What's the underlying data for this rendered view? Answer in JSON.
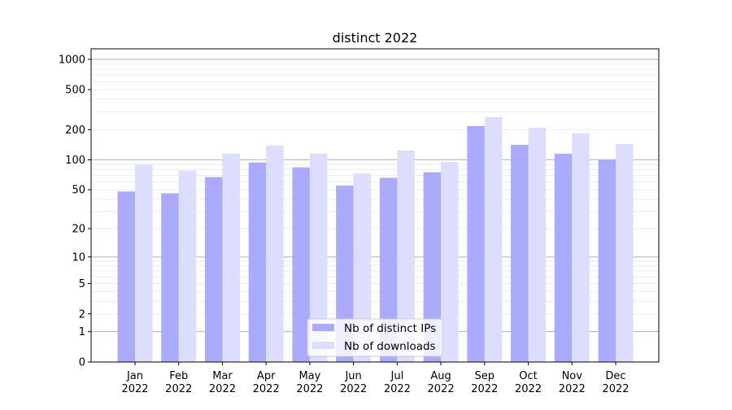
{
  "chart_data": {
    "type": "bar",
    "title": "distinct 2022",
    "xlabel": "",
    "ylabel": "",
    "y_scale": "log10(y+1)",
    "ylim": [
      0,
      1270
    ],
    "yticks": [
      0,
      1,
      2,
      5,
      10,
      20,
      50,
      100,
      200,
      500,
      1000
    ],
    "grid": true,
    "legend_position": "bottom-center",
    "categories": [
      "Jan\n2022",
      "Feb\n2022",
      "Mar\n2022",
      "Apr\n2022",
      "May\n2022",
      "Jun\n2022",
      "Jul\n2022",
      "Aug\n2022",
      "Sep\n2022",
      "Oct\n2022",
      "Nov\n2022",
      "Dec\n2022"
    ],
    "series": [
      {
        "name": "Nb of distinct IPs",
        "color": "#aaaaff",
        "values": [
          48,
          46,
          67,
          94,
          84,
          55,
          66,
          75,
          217,
          141,
          115,
          100
        ]
      },
      {
        "name": "Nb of downloads",
        "color": "#ddddff",
        "values": [
          90,
          78,
          115,
          139,
          115,
          73,
          124,
          95,
          266,
          209,
          184,
          144
        ]
      }
    ]
  }
}
